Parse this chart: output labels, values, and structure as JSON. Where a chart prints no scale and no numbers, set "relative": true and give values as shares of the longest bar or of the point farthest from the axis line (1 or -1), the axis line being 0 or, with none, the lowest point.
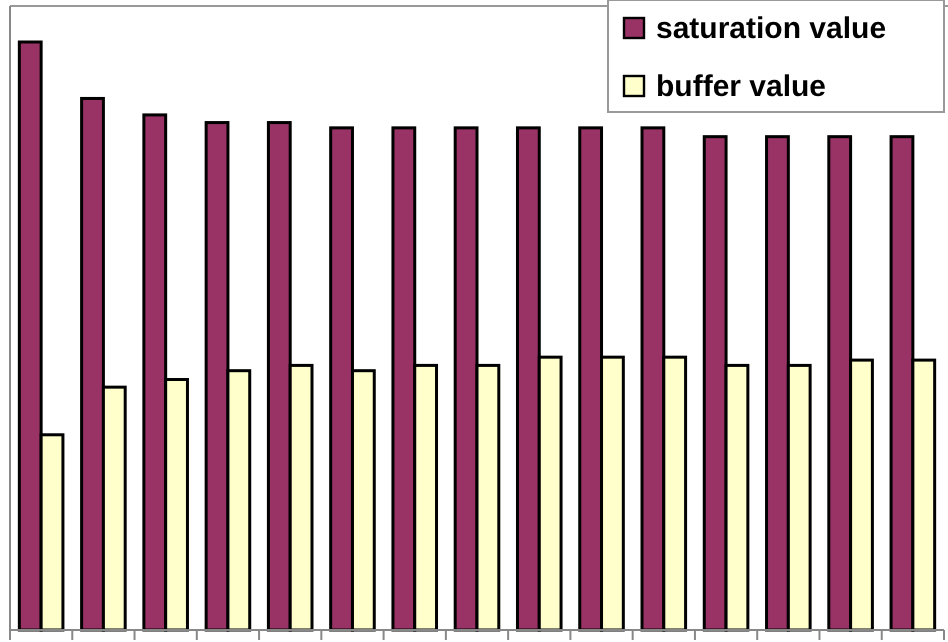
{
  "chart_data": {
    "type": "bar",
    "relative": true,
    "categories": [
      null,
      null,
      null,
      null,
      null,
      null,
      null,
      null,
      null,
      null,
      null,
      null,
      null,
      null,
      null
    ],
    "series": [
      {
        "name": "saturation value",
        "color": "#993366",
        "values": [
          1,
          0.904,
          0.876,
          0.863,
          0.863,
          0.854,
          0.854,
          0.854,
          0.854,
          0.854,
          0.854,
          0.839,
          0.839,
          0.839,
          0.839
        ]
      },
      {
        "name": "buffer value",
        "color": "#ffffcc",
        "values": [
          0.332,
          0.413,
          0.426,
          0.441,
          0.45,
          0.441,
          0.45,
          0.45,
          0.464,
          0.464,
          0.464,
          0.45,
          0.45,
          0.459,
          0.459
        ]
      }
    ],
    "legend": "top right"
  }
}
